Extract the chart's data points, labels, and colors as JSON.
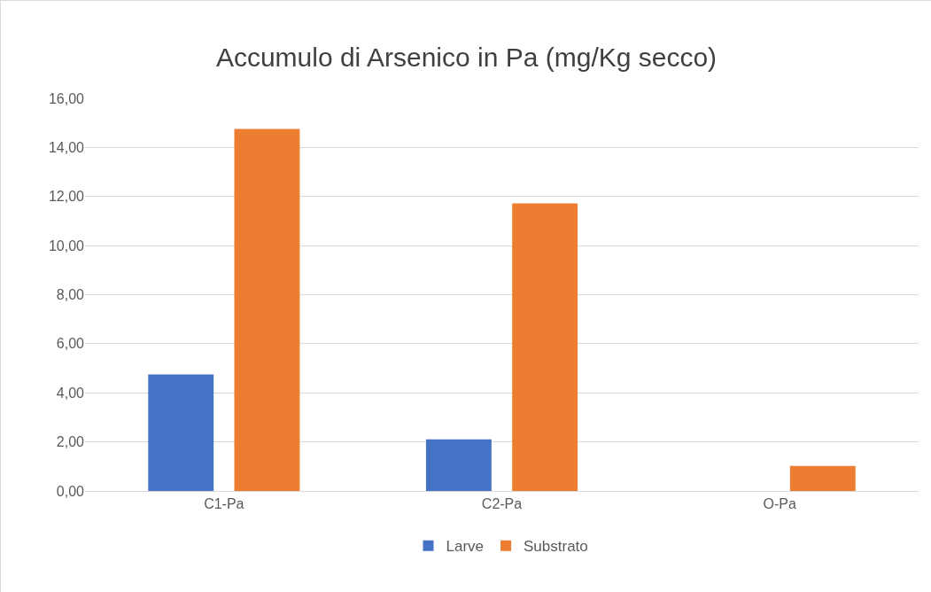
{
  "chart_data": {
    "type": "bar",
    "title": "Accumulo di Arsenico in Pa (mg/Kg secco)",
    "categories": [
      "C1-Pa",
      "C2-Pa",
      "O-Pa"
    ],
    "series": [
      {
        "name": "Larve",
        "color": "#4472c4",
        "values": [
          4.75,
          2.1,
          0
        ]
      },
      {
        "name": "Substrato",
        "color": "#ed7d31",
        "values": [
          14.75,
          11.72,
          1.02
        ]
      }
    ],
    "ylim": [
      0,
      16
    ],
    "yticks": [
      {
        "value": 0,
        "label": "0,00"
      },
      {
        "value": 2,
        "label": "2,00"
      },
      {
        "value": 4,
        "label": "4,00"
      },
      {
        "value": 6,
        "label": "6,00"
      },
      {
        "value": 8,
        "label": "8,00"
      },
      {
        "value": 10,
        "label": "10,00"
      },
      {
        "value": 12,
        "label": "12,00"
      },
      {
        "value": 14,
        "label": "14,00"
      },
      {
        "value": 16,
        "label": "16,00"
      }
    ],
    "grid": "y",
    "legend": "bottom"
  }
}
